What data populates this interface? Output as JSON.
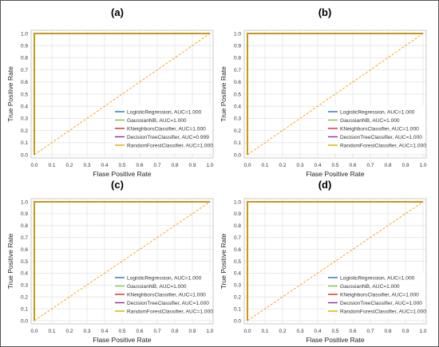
{
  "chart_data": [
    {
      "type": "line",
      "panel_label": "(a)",
      "xlabel": "Flase Positive Rate",
      "ylabel": "True Positive Rate",
      "xlim": [
        0,
        1
      ],
      "ylim": [
        0,
        1
      ],
      "ticks": [
        "0.0",
        "0.1",
        "0.2",
        "0.3",
        "0.4",
        "0.5",
        "0.6",
        "0.7",
        "0.8",
        "0.9",
        "1.0"
      ],
      "grid": true,
      "legend_position": "lower-right",
      "series": [
        {
          "name": "LogisticRegression, AUC=1.000",
          "color": "#1f77b4",
          "x": [
            0,
            0,
            1
          ],
          "y": [
            0,
            1,
            1
          ]
        },
        {
          "name": "GaussianNB, AUC=1.000",
          "color": "#7fbf3f",
          "x": [
            0,
            0,
            1
          ],
          "y": [
            0,
            1,
            1
          ]
        },
        {
          "name": "KNeighborsClassifier, AUC=1.000",
          "color": "#d62728",
          "x": [
            0,
            0,
            1
          ],
          "y": [
            0,
            1,
            1
          ]
        },
        {
          "name": "DecisionTreeClassifier, AUC=0.999",
          "color": "#8e2ca0",
          "x": [
            0,
            0,
            1
          ],
          "y": [
            0,
            1,
            1
          ]
        },
        {
          "name": "RandomForestClassifier, AUC=1.000",
          "color": "#d4b000",
          "x": [
            0,
            0,
            1
          ],
          "y": [
            0,
            1,
            1
          ]
        }
      ],
      "reference_line": {
        "x": [
          0,
          1
        ],
        "y": [
          0,
          1
        ],
        "color": "#f5a623",
        "style": "dashed"
      }
    },
    {
      "type": "line",
      "panel_label": "(b)",
      "xlabel": "Flase Positive Rate",
      "ylabel": "True Positive Rate",
      "xlim": [
        0,
        1
      ],
      "ylim": [
        0,
        1
      ],
      "ticks": [
        "0.0",
        "0.1",
        "0.2",
        "0.3",
        "0.4",
        "0.5",
        "0.6",
        "0.7",
        "0.8",
        "0.9",
        "1.0"
      ],
      "grid": true,
      "legend_position": "lower-right",
      "series": [
        {
          "name": "LogisticRegression, AUC=1.000",
          "color": "#1f77b4",
          "x": [
            0,
            0,
            1
          ],
          "y": [
            0,
            1,
            1
          ]
        },
        {
          "name": "GaussianNB, AUC=1.000",
          "color": "#7fbf3f",
          "x": [
            0,
            0,
            1
          ],
          "y": [
            0,
            1,
            1
          ]
        },
        {
          "name": "KNeighborsClassifier, AUC=1.000",
          "color": "#d62728",
          "x": [
            0,
            0,
            1
          ],
          "y": [
            0,
            1,
            1
          ]
        },
        {
          "name": "DecisionTreeClassifier, AUC=1.000",
          "color": "#8e2ca0",
          "x": [
            0,
            0,
            1
          ],
          "y": [
            0,
            1,
            1
          ]
        },
        {
          "name": "RandomForestClassifier, AUC=1.000",
          "color": "#d4b000",
          "x": [
            0,
            0,
            1
          ],
          "y": [
            0,
            1,
            1
          ]
        }
      ],
      "reference_line": {
        "x": [
          0,
          1
        ],
        "y": [
          0,
          1
        ],
        "color": "#f5a623",
        "style": "dashed"
      }
    },
    {
      "type": "line",
      "panel_label": "(c)",
      "xlabel": "Flase Positive Rate",
      "ylabel": "True Positive Rate",
      "xlim": [
        0,
        1
      ],
      "ylim": [
        0,
        1
      ],
      "ticks": [
        "0.0",
        "0.1",
        "0.2",
        "0.3",
        "0.4",
        "0.5",
        "0.6",
        "0.7",
        "0.8",
        "0.9",
        "1.0"
      ],
      "grid": true,
      "legend_position": "lower-right",
      "series": [
        {
          "name": "LogisticRegression, AUC=1.000",
          "color": "#1f77b4",
          "x": [
            0,
            0,
            1
          ],
          "y": [
            0,
            1,
            1
          ]
        },
        {
          "name": "GaussianNB, AUC=1.000",
          "color": "#7fbf3f",
          "x": [
            0,
            0,
            1
          ],
          "y": [
            0,
            1,
            1
          ]
        },
        {
          "name": "KNeighborsClassifier, AUC=1.000",
          "color": "#d62728",
          "x": [
            0,
            0,
            1
          ],
          "y": [
            0,
            1,
            1
          ]
        },
        {
          "name": "DecisionTreeClassifier, AUC=1.000",
          "color": "#8e2ca0",
          "x": [
            0,
            0,
            1
          ],
          "y": [
            0,
            1,
            1
          ]
        },
        {
          "name": "RandomForestClassifier, AUC=1.000",
          "color": "#d4b000",
          "x": [
            0,
            0,
            1
          ],
          "y": [
            0,
            1,
            1
          ]
        }
      ],
      "reference_line": {
        "x": [
          0,
          1
        ],
        "y": [
          0,
          1
        ],
        "color": "#f5a623",
        "style": "dashed"
      }
    },
    {
      "type": "line",
      "panel_label": "(d)",
      "xlabel": "Flase Positive Rate",
      "ylabel": "True Positive Rate",
      "xlim": [
        0,
        1
      ],
      "ylim": [
        0,
        1
      ],
      "ticks": [
        "0.0",
        "0.1",
        "0.2",
        "0.3",
        "0.4",
        "0.5",
        "0.6",
        "0.7",
        "0.8",
        "0.9",
        "1.0"
      ],
      "grid": true,
      "legend_position": "lower-right",
      "series": [
        {
          "name": "LogisticRegression, AUC=1.000",
          "color": "#1f77b4",
          "x": [
            0,
            0,
            1
          ],
          "y": [
            0,
            1,
            1
          ]
        },
        {
          "name": "GaussianNB, AUC=1.000",
          "color": "#7fbf3f",
          "x": [
            0,
            0,
            1
          ],
          "y": [
            0,
            1,
            1
          ]
        },
        {
          "name": "KNeighborsClassifier, AUC=1.000",
          "color": "#d62728",
          "x": [
            0,
            0,
            1
          ],
          "y": [
            0,
            1,
            1
          ]
        },
        {
          "name": "DecisionTreeClassifier, AUC=1.000",
          "color": "#8e2ca0",
          "x": [
            0,
            0,
            1
          ],
          "y": [
            0,
            1,
            1
          ]
        },
        {
          "name": "RandomForestClassifier, AUC=1.000",
          "color": "#d4b000",
          "x": [
            0,
            0,
            1
          ],
          "y": [
            0,
            1,
            1
          ]
        }
      ],
      "reference_line": {
        "x": [
          0,
          1
        ],
        "y": [
          0,
          1
        ],
        "color": "#f5a623",
        "style": "dashed"
      }
    }
  ]
}
